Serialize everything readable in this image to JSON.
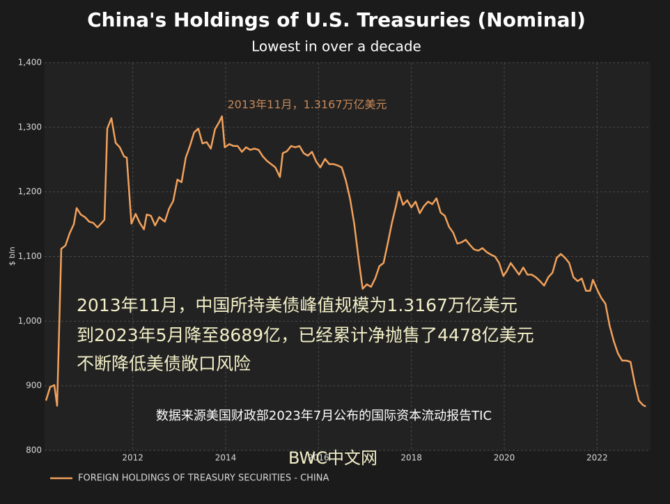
{
  "chart_data": {
    "type": "line",
    "title": "China's Holdings of U.S. Treasuries (Nominal)",
    "subtitle": "Lowest in over a decade",
    "y_label": "$ bln",
    "xlim": [
      2010.1,
      2023.15
    ],
    "xticks": [
      2012,
      2014,
      2016,
      2018,
      2020,
      2022
    ],
    "ylim": [
      800,
      1400
    ],
    "yticks": [
      {
        "value": 1400,
        "label": "1,400"
      },
      {
        "value": 1300,
        "label": "1,300"
      },
      {
        "value": 1200,
        "label": "1,200"
      },
      {
        "value": 1100,
        "label": "1,100"
      },
      {
        "value": 1000,
        "label": "1,000"
      },
      900,
      800
    ],
    "grid": true,
    "legend": "bottom-left",
    "x": [
      2010.13,
      2010.22,
      2010.31,
      2010.37,
      2010.46,
      2010.55,
      2010.64,
      2010.73,
      2010.79,
      2010.88,
      2010.97,
      2011.06,
      2011.15,
      2011.24,
      2011.33,
      2011.39,
      2011.45,
      2011.54,
      2011.63,
      2011.72,
      2011.81,
      2011.87,
      2011.97,
      2012.06,
      2012.15,
      2012.24,
      2012.3,
      2012.39,
      2012.48,
      2012.57,
      2012.69,
      2012.78,
      2012.87,
      2012.96,
      2013.05,
      2013.14,
      2013.23,
      2013.32,
      2013.41,
      2013.5,
      2013.59,
      2013.68,
      2013.77,
      2013.86,
      2013.92,
      2013.98,
      2014.08,
      2014.17,
      2014.26,
      2014.35,
      2014.44,
      2014.53,
      2014.62,
      2014.71,
      2014.8,
      2014.89,
      2014.98,
      2015.07,
      2015.17,
      2015.23,
      2015.32,
      2015.41,
      2015.5,
      2015.59,
      2015.68,
      2015.77,
      2015.86,
      2015.95,
      2016.04,
      2016.14,
      2016.23,
      2016.32,
      2016.41,
      2016.5,
      2016.59,
      2016.68,
      2016.77,
      2016.86,
      2016.95,
      2017.04,
      2017.13,
      2017.22,
      2017.31,
      2017.4,
      2017.49,
      2017.58,
      2017.67,
      2017.73,
      2017.82,
      2017.91,
      2018.0,
      2018.09,
      2018.18,
      2018.27,
      2018.36,
      2018.45,
      2018.54,
      2018.63,
      2018.72,
      2018.81,
      2018.9,
      2018.99,
      2019.08,
      2019.17,
      2019.26,
      2019.35,
      2019.44,
      2019.53,
      2019.62,
      2019.71,
      2019.8,
      2019.89,
      2019.98,
      2020.05,
      2020.14,
      2020.23,
      2020.32,
      2020.41,
      2020.5,
      2020.59,
      2020.68,
      2020.77,
      2020.86,
      2020.95,
      2021.04,
      2021.13,
      2021.22,
      2021.31,
      2021.4,
      2021.49,
      2021.58,
      2021.67,
      2021.76,
      2021.85,
      2021.91,
      2022.0,
      2022.09,
      2022.18,
      2022.27,
      2022.36,
      2022.45,
      2022.54,
      2022.63,
      2022.72,
      2022.81,
      2022.9,
      2022.99,
      2023.05
    ],
    "series": [
      {
        "name": "FOREIGN HOLDINGS OF TREASURY SECURITIES - CHINA",
        "color": "#f2a25c",
        "values": [
          877,
          898,
          901,
          869,
          1112,
          1117,
          1136,
          1150,
          1175,
          1165,
          1161,
          1154,
          1152,
          1145,
          1152,
          1157,
          1298,
          1314,
          1276,
          1269,
          1255,
          1253,
          1151,
          1166,
          1152,
          1142,
          1165,
          1163,
          1148,
          1161,
          1154,
          1174,
          1186,
          1219,
          1215,
          1253,
          1271,
          1292,
          1298,
          1275,
          1277,
          1267,
          1297,
          1308,
          1317,
          1269,
          1274,
          1271,
          1271,
          1262,
          1269,
          1265,
          1267,
          1265,
          1255,
          1248,
          1243,
          1238,
          1223,
          1260,
          1263,
          1271,
          1269,
          1271,
          1260,
          1256,
          1262,
          1247,
          1238,
          1251,
          1243,
          1243,
          1241,
          1238,
          1217,
          1189,
          1150,
          1098,
          1050,
          1057,
          1053,
          1066,
          1085,
          1090,
          1120,
          1152,
          1179,
          1200,
          1180,
          1187,
          1176,
          1185,
          1167,
          1178,
          1185,
          1181,
          1190,
          1168,
          1163,
          1146,
          1137,
          1120,
          1122,
          1126,
          1118,
          1111,
          1109,
          1113,
          1107,
          1103,
          1100,
          1090,
          1070,
          1077,
          1090,
          1081,
          1072,
          1083,
          1072,
          1072,
          1068,
          1062,
          1055,
          1068,
          1075,
          1098,
          1104,
          1098,
          1090,
          1068,
          1062,
          1066,
          1047,
          1047,
          1064,
          1049,
          1036,
          1027,
          993,
          969,
          950,
          939,
          939,
          937,
          904,
          877,
          870,
          868
        ]
      }
    ],
    "annotations": [
      "2013年11月，1.3167万亿美元",
      "2013年11月，中国所持美债峰值规模为1.3167万亿美元",
      "到2023年5月降至8689亿，已经累计净抛售了4478亿美元",
      "不断降低美债敞口风险",
      "数据来源美国财政部2023年7月公布的国际资本流动报告TIC",
      "BWC中文网"
    ]
  }
}
